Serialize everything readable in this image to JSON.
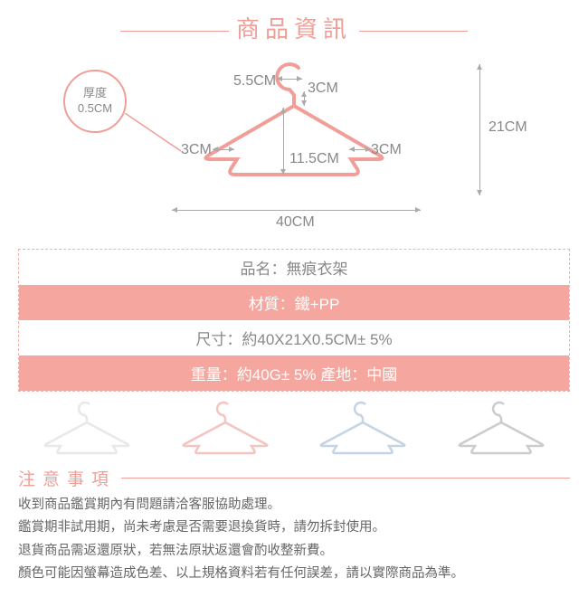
{
  "colors": {
    "accent": "#f09e97",
    "accent_fill": "#f5a79f",
    "gray_text": "#888888",
    "dark_text": "#666666",
    "border_dash": "#f3b0aa",
    "thumb_white": "#e8e8e8",
    "thumb_pink": "#f3c4c0",
    "thumb_blue": "#c4d4e2",
    "thumb_gray": "#cccccc",
    "arrow": "#aaaaaa"
  },
  "header": {
    "title": "商品資訊"
  },
  "diagram": {
    "thickness_label": "厚度",
    "thickness_value": "0.5CM",
    "dim_hook_w": "5.5CM",
    "dim_hook_drop": "3CM",
    "dim_notch_left": "3CM",
    "dim_notch_right": "3CM",
    "dim_inner_h": "11.5CM",
    "dim_total_h": "21CM",
    "dim_total_w": "40CM"
  },
  "specs": {
    "rows": [
      {
        "label": "品名：",
        "value": "無痕衣架",
        "hl": false
      },
      {
        "label": "材質：",
        "value": "鐵+PP",
        "hl": true
      },
      {
        "label": "尺寸：",
        "value": "約40X21X0.5CM± 5%",
        "hl": false
      },
      {
        "label": "重量：",
        "value": "約40G± 5%  產地：中國",
        "hl": true
      }
    ]
  },
  "notice": {
    "title": "注意事項",
    "lines": [
      "收到商品鑑賞期內有問題請洽客服協助處理。",
      "鑑賞期非試用期，尚未考慮是否需要退換貨時，請勿拆封使用。",
      "退貨商品需返還原狀，若無法原狀返還會酌收整新費。",
      "顏色可能因螢幕造成色差、以上規格資料若有任何誤差，請以實際商品為準。"
    ]
  }
}
